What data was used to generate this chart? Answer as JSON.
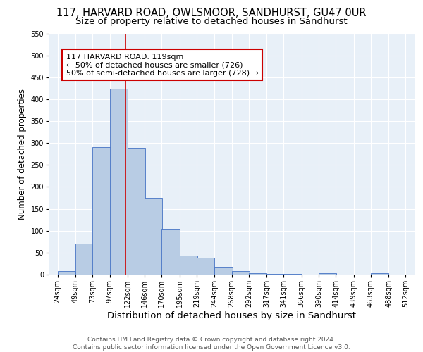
{
  "title1": "117, HARVARD ROAD, OWLSMOOR, SANDHURST, GU47 0UR",
  "title2": "Size of property relative to detached houses in Sandhurst",
  "xlabel": "Distribution of detached houses by size in Sandhurst",
  "ylabel": "Number of detached properties",
  "bar_values": [
    8,
    70,
    291,
    424,
    289,
    175,
    105,
    43,
    38,
    17,
    8,
    4,
    2,
    1,
    0,
    4,
    0,
    0,
    3
  ],
  "bar_labels": [
    "24sqm",
    "49sqm",
    "73sqm",
    "97sqm",
    "122sqm",
    "146sqm",
    "170sqm",
    "195sqm",
    "219sqm",
    "244sqm",
    "268sqm",
    "292sqm",
    "317sqm",
    "341sqm",
    "366sqm",
    "390sqm",
    "414sqm",
    "439sqm",
    "463sqm",
    "488sqm",
    "512sqm"
  ],
  "bar_edges": [
    24,
    49,
    73,
    97,
    122,
    146,
    170,
    195,
    219,
    244,
    268,
    292,
    317,
    341,
    366,
    390,
    414,
    439,
    463,
    488,
    512
  ],
  "bar_color": "#b8cce4",
  "bar_edge_color": "#4472c4",
  "background_color": "#e8f0f8",
  "grid_color": "#ffffff",
  "vline_x": 119,
  "vline_color": "#cc0000",
  "annotation_text": "117 HARVARD ROAD: 119sqm\n← 50% of detached houses are smaller (726)\n50% of semi-detached houses are larger (728) →",
  "annotation_box_color": "#ffffff",
  "annotation_box_edge": "#cc0000",
  "ylim": [
    0,
    550
  ],
  "yticks": [
    0,
    50,
    100,
    150,
    200,
    250,
    300,
    350,
    400,
    450,
    500,
    550
  ],
  "footer_text": "Contains HM Land Registry data © Crown copyright and database right 2024.\nContains public sector information licensed under the Open Government Licence v3.0.",
  "title1_fontsize": 10.5,
  "title2_fontsize": 9.5,
  "xlabel_fontsize": 9.5,
  "ylabel_fontsize": 8.5,
  "tick_fontsize": 7,
  "footer_fontsize": 6.5,
  "annot_fontsize": 8
}
